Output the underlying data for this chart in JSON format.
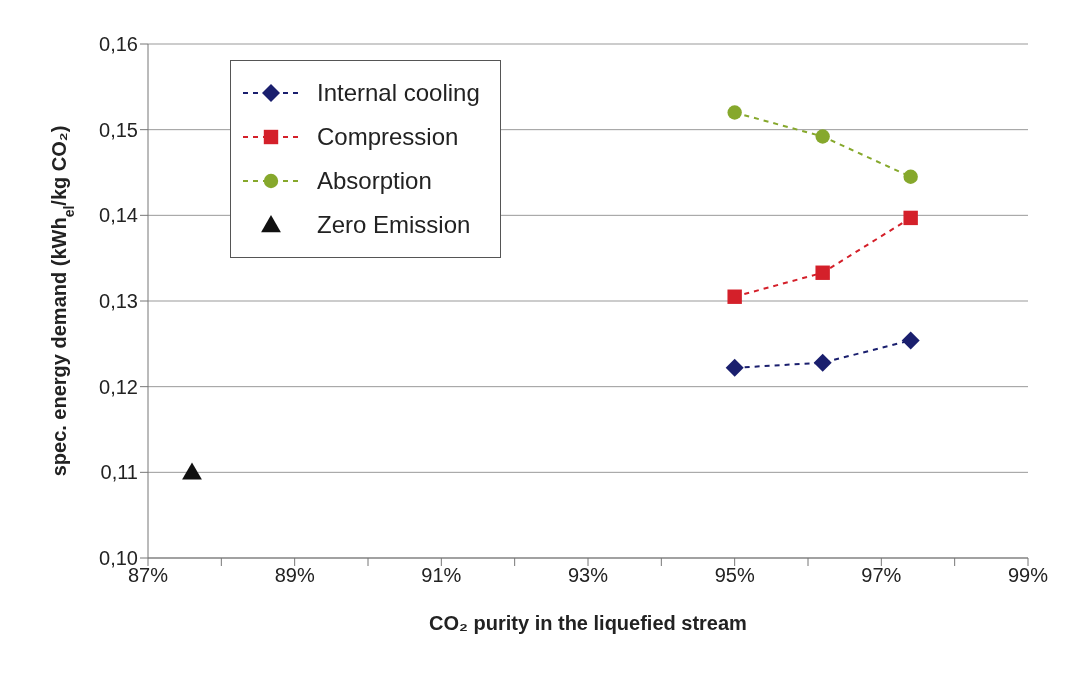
{
  "chart_data": {
    "type": "line",
    "xlabel": "CO₂ purity in the liquefied stream",
    "ylabel": "spec. energy demand (kWh$_{el}$/kg CO₂)",
    "xlim": [
      87,
      99
    ],
    "ylim": [
      0.1,
      0.16
    ],
    "xticks": [
      {
        "value": 87,
        "label": "87%"
      },
      {
        "value": 88,
        "label": null
      },
      {
        "value": 89,
        "label": "89%"
      },
      {
        "value": 90,
        "label": null
      },
      {
        "value": 91,
        "label": "91%"
      },
      {
        "value": 92,
        "label": null
      },
      {
        "value": 93,
        "label": "93%"
      },
      {
        "value": 94,
        "label": null
      },
      {
        "value": 95,
        "label": "95%"
      },
      {
        "value": 96,
        "label": null
      },
      {
        "value": 97,
        "label": "97%"
      },
      {
        "value": 98,
        "label": null
      },
      {
        "value": 99,
        "label": "99%"
      }
    ],
    "yticks": [
      {
        "value": 0.1,
        "label": "0,10"
      },
      {
        "value": 0.11,
        "label": "0,11"
      },
      {
        "value": 0.12,
        "label": "0,12"
      },
      {
        "value": 0.13,
        "label": "0,13"
      },
      {
        "value": 0.14,
        "label": "0,14"
      },
      {
        "value": 0.15,
        "label": "0,15"
      },
      {
        "value": 0.16,
        "label": "0,16"
      }
    ],
    "grid": "y",
    "legend": "top left",
    "line_style": "dashed",
    "series": [
      {
        "name": "Internal cooling",
        "color": "#1a1f6e",
        "marker": "diamond",
        "x": [
          95.0,
          96.2,
          97.4
        ],
        "values": [
          0.1222,
          0.1228,
          0.1254
        ]
      },
      {
        "name": "Compression",
        "color": "#d4202a",
        "marker": "square",
        "x": [
          95.0,
          96.2,
          97.4
        ],
        "values": [
          0.1305,
          0.1333,
          0.1397
        ]
      },
      {
        "name": "Absorption",
        "color": "#86a82c",
        "marker": "circle",
        "x": [
          95.0,
          96.2,
          97.4
        ],
        "values": [
          0.152,
          0.1492,
          0.1445
        ]
      },
      {
        "name": "Zero Emission",
        "color": "#111111",
        "type": "scatter",
        "marker": "triangle",
        "x": [
          87.6
        ],
        "values": [
          0.11
        ]
      }
    ]
  }
}
